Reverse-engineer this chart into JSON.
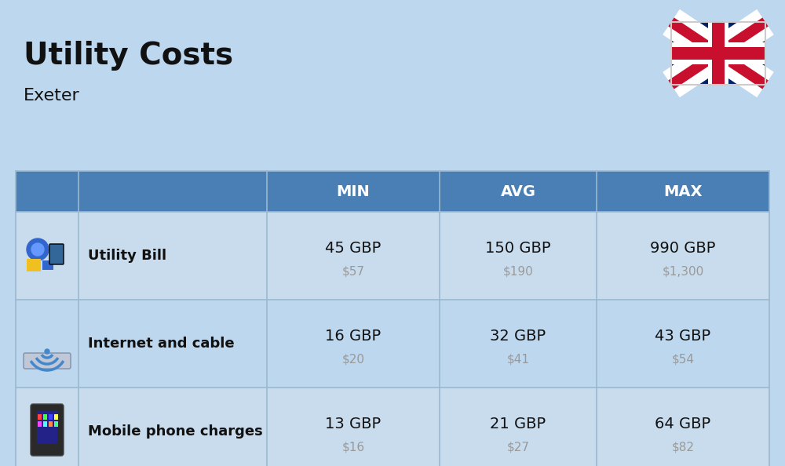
{
  "title": "Utility Costs",
  "subtitle": "Exeter",
  "background_color": "#bdd7ee",
  "header_color": "#4a7fb5",
  "header_text_color": "#ffffff",
  "row_color_odd": "#c9dcee",
  "row_color_even": "#bdd7ee",
  "text_color": "#111111",
  "subtext_color": "#999999",
  "rows": [
    {
      "label": "Utility Bill",
      "min_gbp": "45 GBP",
      "min_usd": "$57",
      "avg_gbp": "150 GBP",
      "avg_usd": "$190",
      "max_gbp": "990 GBP",
      "max_usd": "$1,300",
      "icon": "utility"
    },
    {
      "label": "Internet and cable",
      "min_gbp": "16 GBP",
      "min_usd": "$20",
      "avg_gbp": "32 GBP",
      "avg_usd": "$41",
      "max_gbp": "43 GBP",
      "max_usd": "$54",
      "icon": "internet"
    },
    {
      "label": "Mobile phone charges",
      "min_gbp": "13 GBP",
      "min_usd": "$16",
      "avg_gbp": "21 GBP",
      "avg_usd": "$27",
      "max_gbp": "64 GBP",
      "max_usd": "$82",
      "icon": "mobile"
    }
  ],
  "flag_blue": "#012169",
  "flag_red": "#C8102E",
  "title_fontsize": 28,
  "subtitle_fontsize": 16,
  "header_fontsize": 14,
  "label_fontsize": 13,
  "value_fontsize": 14,
  "subvalue_fontsize": 11
}
